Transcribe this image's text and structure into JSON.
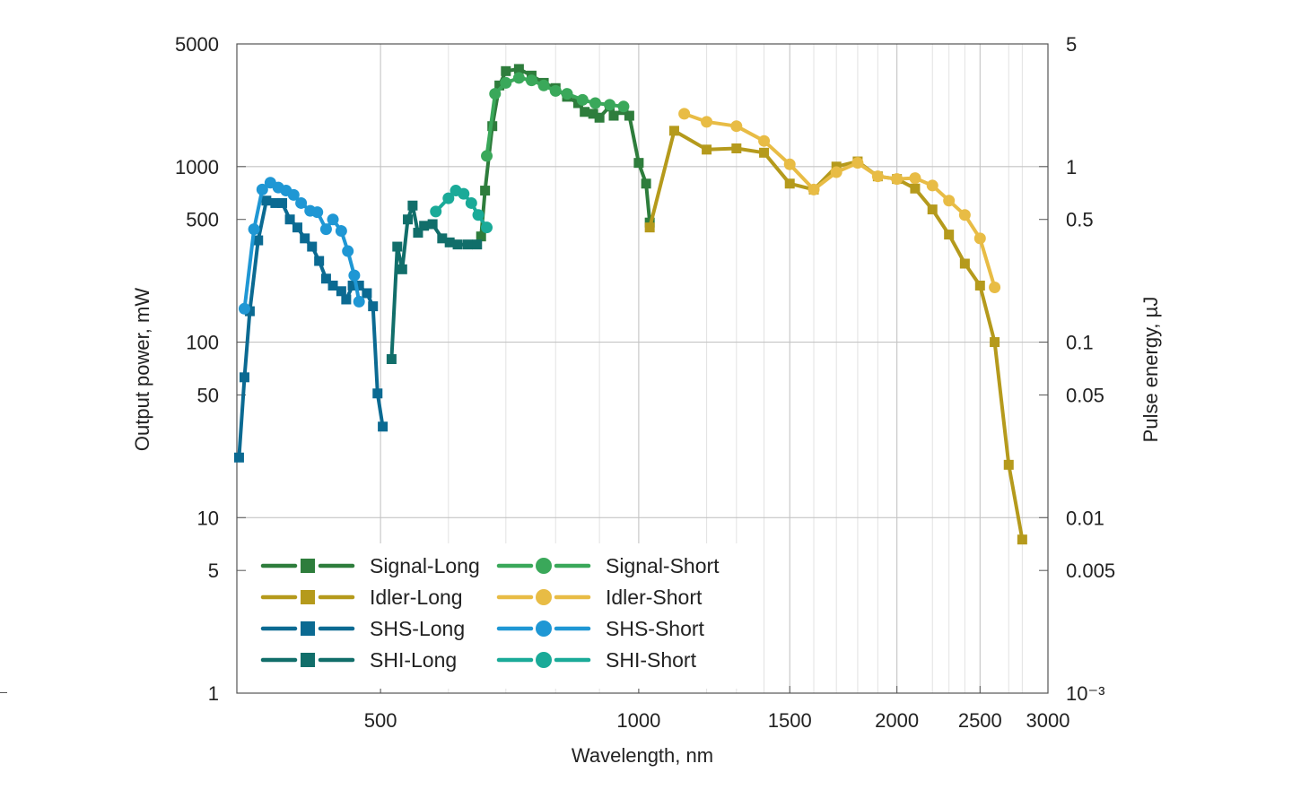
{
  "chart_data": {
    "type": "line",
    "title": "",
    "xlabel": "Wavelength, nm",
    "ylabel": "Output power, mW",
    "y2label": "Pulse energy, µJ",
    "xscale": "log",
    "yscale": "log",
    "xlim": [
      340,
      3000
    ],
    "ylim": [
      1,
      5000
    ],
    "grid": true,
    "legend_position": "bottom-left",
    "x_ticks": [
      {
        "value": 500,
        "label": "500"
      },
      {
        "value": 1000,
        "label": "1000"
      },
      {
        "value": 1500,
        "label": "1500"
      },
      {
        "value": 2000,
        "label": "2000"
      },
      {
        "value": 2500,
        "label": "2500"
      },
      {
        "value": 3000,
        "label": "3000"
      }
    ],
    "x_minor_gridlines": [
      600,
      700,
      800,
      900,
      1200,
      1300,
      1400,
      1600,
      1700,
      1800,
      1900,
      2200,
      2300,
      2400,
      2700,
      2800
    ],
    "y_ticks": [
      {
        "value": 1,
        "label": "1"
      },
      {
        "value": 5,
        "label": "5"
      },
      {
        "value": 10,
        "label": "10"
      },
      {
        "value": 50,
        "label": "50"
      },
      {
        "value": 100,
        "label": "100"
      },
      {
        "value": 500,
        "label": "500"
      },
      {
        "value": 1000,
        "label": "1000"
      },
      {
        "value": 5000,
        "label": "5000"
      }
    ],
    "y_gridlines": [
      10,
      100,
      1000
    ],
    "y2_ticks": [
      {
        "value": 1,
        "label": "10⁻³"
      },
      {
        "value": 5,
        "label": "0.005"
      },
      {
        "value": 10,
        "label": "0.01"
      },
      {
        "value": 50,
        "label": "0.05"
      },
      {
        "value": 100,
        "label": "0.1"
      },
      {
        "value": 500,
        "label": "0.5"
      },
      {
        "value": 1000,
        "label": "1"
      },
      {
        "value": 5000,
        "label": "5"
      }
    ],
    "series": [
      {
        "name": "Signal-Long",
        "color": "#2e7d3c",
        "marker": "square",
        "points": [
          [
            655,
            400
          ],
          [
            662,
            730
          ],
          [
            675,
            1700
          ],
          [
            688,
            2900
          ],
          [
            700,
            3500
          ],
          [
            725,
            3600
          ],
          [
            750,
            3300
          ],
          [
            775,
            3000
          ],
          [
            800,
            2800
          ],
          [
            825,
            2500
          ],
          [
            850,
            2300
          ],
          [
            865,
            2050
          ],
          [
            885,
            2000
          ],
          [
            900,
            1900
          ],
          [
            925,
            2200
          ],
          [
            935,
            1950
          ],
          [
            960,
            2100
          ],
          [
            975,
            1950
          ],
          [
            1000,
            1050
          ],
          [
            1020,
            800
          ],
          [
            1030,
            480
          ]
        ]
      },
      {
        "name": "Signal-Short",
        "color": "#3aa85a",
        "marker": "circle",
        "points": [
          [
            665,
            1150
          ],
          [
            680,
            2600
          ],
          [
            700,
            3000
          ],
          [
            725,
            3200
          ],
          [
            750,
            3100
          ],
          [
            775,
            2900
          ],
          [
            800,
            2700
          ],
          [
            825,
            2600
          ],
          [
            860,
            2400
          ],
          [
            890,
            2300
          ],
          [
            925,
            2250
          ],
          [
            960,
            2200
          ]
        ]
      },
      {
        "name": "Idler-Long",
        "color": "#b59a1c",
        "marker": "square",
        "points": [
          [
            1030,
            450
          ],
          [
            1100,
            1600
          ],
          [
            1200,
            1250
          ],
          [
            1300,
            1270
          ],
          [
            1400,
            1200
          ],
          [
            1500,
            800
          ],
          [
            1600,
            740
          ],
          [
            1700,
            1000
          ],
          [
            1800,
            1070
          ],
          [
            1900,
            880
          ],
          [
            2000,
            850
          ],
          [
            2100,
            750
          ],
          [
            2200,
            570
          ],
          [
            2300,
            410
          ],
          [
            2400,
            280
          ],
          [
            2500,
            210
          ],
          [
            2600,
            100
          ],
          [
            2700,
            20
          ],
          [
            2800,
            7.5
          ]
        ]
      },
      {
        "name": "Idler-Short",
        "color": "#e8bc45",
        "marker": "circle",
        "points": [
          [
            1130,
            2000
          ],
          [
            1200,
            1800
          ],
          [
            1300,
            1700
          ],
          [
            1400,
            1400
          ],
          [
            1500,
            1030
          ],
          [
            1600,
            740
          ],
          [
            1700,
            930
          ],
          [
            1800,
            1050
          ],
          [
            1900,
            880
          ],
          [
            2000,
            850
          ],
          [
            2100,
            860
          ],
          [
            2200,
            780
          ],
          [
            2300,
            640
          ],
          [
            2400,
            530
          ],
          [
            2500,
            390
          ],
          [
            2600,
            205
          ]
        ]
      },
      {
        "name": "SHS-Long",
        "color": "#0b6a92",
        "marker": "square",
        "points": [
          [
            342,
            22
          ],
          [
            347,
            63
          ],
          [
            352,
            150
          ],
          [
            360,
            380
          ],
          [
            368,
            640
          ],
          [
            377,
            620
          ],
          [
            384,
            620
          ],
          [
            392,
            500
          ],
          [
            400,
            450
          ],
          [
            408,
            390
          ],
          [
            416,
            350
          ],
          [
            424,
            290
          ],
          [
            432,
            230
          ],
          [
            440,
            210
          ],
          [
            450,
            195
          ],
          [
            456,
            175
          ],
          [
            464,
            210
          ],
          [
            472,
            210
          ],
          [
            482,
            190
          ],
          [
            490,
            160
          ],
          [
            496,
            51
          ],
          [
            503,
            33
          ]
        ]
      },
      {
        "name": "SHS-Short",
        "color": "#1f97d4",
        "marker": "circle",
        "points": [
          [
            347,
            155
          ],
          [
            356,
            440
          ],
          [
            364,
            740
          ],
          [
            372,
            810
          ],
          [
            380,
            760
          ],
          [
            388,
            730
          ],
          [
            396,
            690
          ],
          [
            404,
            620
          ],
          [
            414,
            560
          ],
          [
            422,
            550
          ],
          [
            432,
            440
          ],
          [
            440,
            500
          ],
          [
            450,
            430
          ],
          [
            458,
            330
          ],
          [
            466,
            240
          ],
          [
            472,
            170
          ]
        ]
      },
      {
        "name": "SHI-Long",
        "color": "#116e6a",
        "marker": "square",
        "points": [
          [
            515,
            80
          ],
          [
            523,
            350
          ],
          [
            530,
            260
          ],
          [
            538,
            500
          ],
          [
            545,
            600
          ],
          [
            553,
            420
          ],
          [
            562,
            460
          ],
          [
            575,
            470
          ],
          [
            590,
            390
          ],
          [
            602,
            370
          ],
          [
            615,
            360
          ],
          [
            632,
            360
          ],
          [
            648,
            360
          ]
        ]
      },
      {
        "name": "SHI-Short",
        "color": "#1aaa98",
        "marker": "circle",
        "points": [
          [
            580,
            555
          ],
          [
            600,
            660
          ],
          [
            612,
            730
          ],
          [
            625,
            700
          ],
          [
            638,
            620
          ],
          [
            650,
            530
          ],
          [
            665,
            450
          ]
        ]
      }
    ]
  }
}
